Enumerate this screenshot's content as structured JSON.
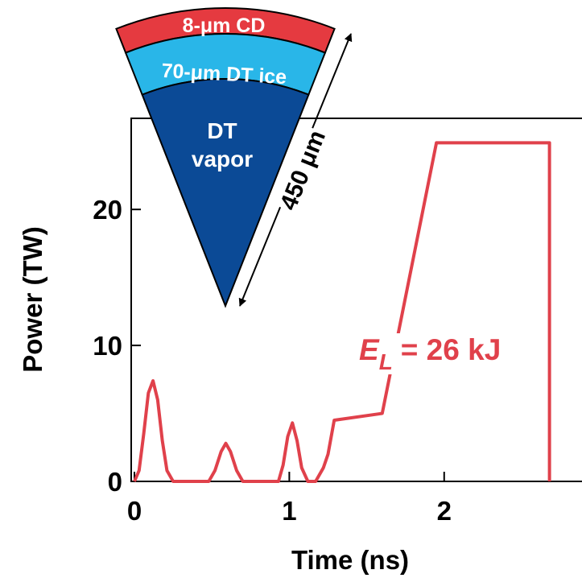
{
  "chart_data": {
    "type": "line",
    "x_label": "Time (ns)",
    "y_label": "Power (TW)",
    "x": [
      0,
      0.03,
      0.06,
      0.09,
      0.12,
      0.15,
      0.18,
      0.21,
      0.25,
      0.48,
      0.52,
      0.56,
      0.59,
      0.62,
      0.66,
      0.7,
      0.93,
      0.96,
      0.99,
      1.02,
      1.05,
      1.08,
      1.12,
      1.17,
      1.22,
      1.25,
      1.29,
      1.6,
      1.95,
      2.68,
      2.68
    ],
    "series": [
      {
        "color": "#e0414b",
        "values": [
          0,
          0.8,
          3.5,
          6.5,
          7.4,
          6.0,
          3.0,
          0.8,
          0,
          0,
          0.8,
          2.2,
          2.8,
          2.2,
          0.8,
          0,
          0,
          1.2,
          3.3,
          4.3,
          3.0,
          1.0,
          0,
          0,
          1.0,
          2.0,
          4.5,
          5.0,
          24.9,
          24.9,
          0
        ]
      }
    ],
    "xlim": [
      0,
      2.89
    ],
    "ylim": [
      0,
      26.7
    ],
    "xticks": [
      0,
      1,
      2
    ],
    "yticks": [
      0,
      10,
      20
    ],
    "annotation": {
      "symbol": "E",
      "subscript": "L",
      "text": "= 26 kJ"
    },
    "inset": {
      "outer_layer": "8-μm CD",
      "middle_layer": "70-μm DT ice",
      "core": [
        "DT",
        "vapor"
      ],
      "radius": "450 μm"
    }
  }
}
